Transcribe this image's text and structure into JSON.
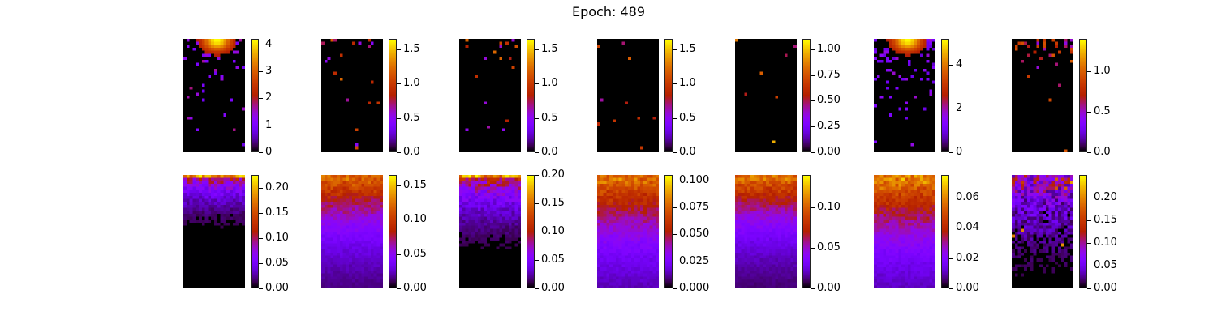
{
  "title": "Epoch: 489",
  "chart_data": {
    "type": "heatmap",
    "title": "Epoch: 489",
    "colormap": "gnuplot",
    "grid": false,
    "layout": {
      "rows": 2,
      "cols": 7
    },
    "panels": [
      {
        "row": 0,
        "col": 0,
        "vmin": 0,
        "vmax": 4.2,
        "ticks": [
          "0",
          "1",
          "2",
          "3",
          "4"
        ],
        "tick_values": [
          0,
          1,
          2,
          3,
          4
        ],
        "pattern": "sparse-top-hot",
        "density": 0.3,
        "intensity": 0.35
      },
      {
        "row": 0,
        "col": 1,
        "vmin": 0,
        "vmax": 1.65,
        "ticks": [
          "0.0",
          "0.5",
          "1.0",
          "1.5"
        ],
        "tick_values": [
          0,
          0.5,
          1.0,
          1.5
        ],
        "pattern": "sparse",
        "density": 0.02,
        "intensity": 0.55
      },
      {
        "row": 0,
        "col": 2,
        "vmin": 0,
        "vmax": 1.65,
        "ticks": [
          "0.0",
          "0.5",
          "1.0",
          "1.5"
        ],
        "tick_values": [
          0,
          0.5,
          1.0,
          1.5
        ],
        "pattern": "sparse",
        "density": 0.02,
        "intensity": 0.55
      },
      {
        "row": 0,
        "col": 3,
        "vmin": 0,
        "vmax": 1.65,
        "ticks": [
          "0.0",
          "0.5",
          "1.0",
          "1.5"
        ],
        "tick_values": [
          0,
          0.5,
          1.0,
          1.5
        ],
        "pattern": "sparse",
        "density": 0.015,
        "intensity": 0.55
      },
      {
        "row": 0,
        "col": 4,
        "vmin": 0,
        "vmax": 1.1,
        "ticks": [
          "0.00",
          "0.25",
          "0.50",
          "0.75",
          "1.00"
        ],
        "tick_values": [
          0,
          0.25,
          0.5,
          0.75,
          1.0
        ],
        "pattern": "sparse",
        "density": 0.025,
        "intensity": 0.65
      },
      {
        "row": 0,
        "col": 5,
        "vmin": 0,
        "vmax": 5.2,
        "ticks": [
          "0",
          "2",
          "4"
        ],
        "tick_values": [
          0,
          2,
          4
        ],
        "pattern": "sparse-top-hot",
        "density": 0.4,
        "intensity": 0.3
      },
      {
        "row": 0,
        "col": 6,
        "vmin": 0,
        "vmax": 1.4,
        "ticks": [
          "0.0",
          "0.5",
          "1.0"
        ],
        "tick_values": [
          0,
          0.5,
          1.0
        ],
        "pattern": "sparse-top-orange",
        "density": 0.35,
        "intensity": 0.65
      },
      {
        "row": 1,
        "col": 0,
        "vmin": 0,
        "vmax": 0.225,
        "ticks": [
          "0.00",
          "0.05",
          "0.10",
          "0.15",
          "0.20"
        ],
        "tick_values": [
          0,
          0.05,
          0.1,
          0.15,
          0.2
        ],
        "pattern": "top-band",
        "depth": 0.18,
        "intensity": 0.55
      },
      {
        "row": 1,
        "col": 1,
        "vmin": 0,
        "vmax": 0.165,
        "ticks": [
          "0.00",
          "0.05",
          "0.10",
          "0.15"
        ],
        "tick_values": [
          0,
          0.05,
          0.1,
          0.15
        ],
        "pattern": "gradient",
        "depth": 0.45,
        "intensity": 0.6
      },
      {
        "row": 1,
        "col": 2,
        "vmin": 0,
        "vmax": 0.2,
        "ticks": [
          "0.00",
          "0.05",
          "0.10",
          "0.15",
          "0.20"
        ],
        "tick_values": [
          0,
          0.05,
          0.1,
          0.15,
          0.2
        ],
        "pattern": "top-band",
        "depth": 0.25,
        "intensity": 0.6
      },
      {
        "row": 1,
        "col": 3,
        "vmin": 0,
        "vmax": 0.105,
        "ticks": [
          "0.000",
          "0.025",
          "0.050",
          "0.075",
          "0.100"
        ],
        "tick_values": [
          0,
          0.025,
          0.05,
          0.075,
          0.1
        ],
        "pattern": "gradient",
        "depth": 0.55,
        "intensity": 0.65
      },
      {
        "row": 1,
        "col": 4,
        "vmin": 0,
        "vmax": 0.14,
        "ticks": [
          "0.00",
          "0.05",
          "0.10"
        ],
        "tick_values": [
          0,
          0.05,
          0.1
        ],
        "pattern": "gradient",
        "depth": 0.42,
        "intensity": 0.65
      },
      {
        "row": 1,
        "col": 5,
        "vmin": 0,
        "vmax": 0.075,
        "ticks": [
          "0.00",
          "0.02",
          "0.04",
          "0.06"
        ],
        "tick_values": [
          0,
          0.02,
          0.04,
          0.06
        ],
        "pattern": "gradient",
        "depth": 0.55,
        "intensity": 0.75
      },
      {
        "row": 1,
        "col": 6,
        "vmin": 0,
        "vmax": 0.25,
        "ticks": [
          "0.00",
          "0.05",
          "0.10",
          "0.15",
          "0.20"
        ],
        "tick_values": [
          0,
          0.05,
          0.1,
          0.15,
          0.2
        ],
        "pattern": "noisy-top",
        "depth": 0.35,
        "intensity": 0.4
      }
    ]
  }
}
